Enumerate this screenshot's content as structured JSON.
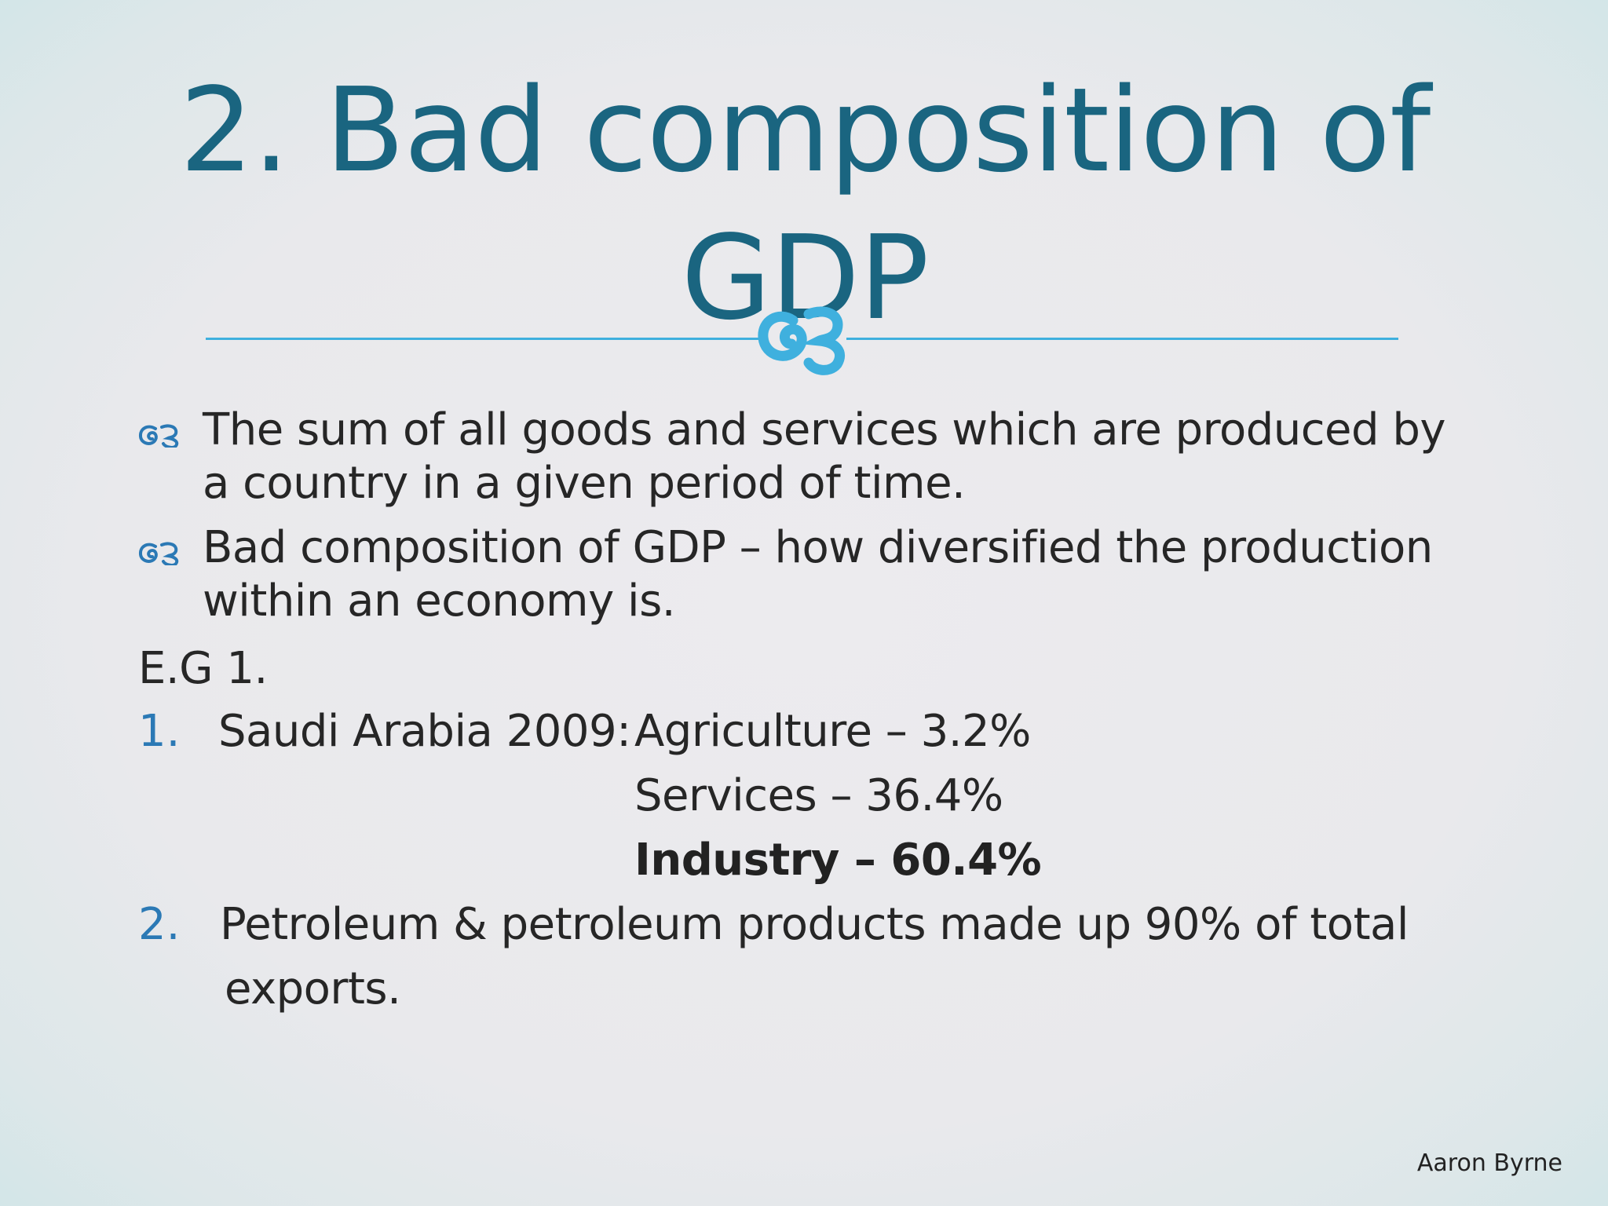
{
  "slide": {
    "title_line1": "2. Bad composition of",
    "title_line2": "GDP",
    "bullets": [
      {
        "line1": "The sum of all goods and services which are produced by",
        "line2": "a country in a given period of time."
      },
      {
        "line1": "Bad composition of GDP – how diversified the production",
        "line2": "within an economy is."
      }
    ],
    "example_label": "E.G 1.",
    "list": [
      {
        "number": "1.",
        "lead": "Saudi Arabia 2009:",
        "items": [
          "Agriculture – 3.2%",
          "Services – 36.4%",
          "Industry – 60.4%"
        ]
      },
      {
        "number": "2.",
        "line1": "Petroleum & petroleum products made up 90% of total",
        "line2": "exports."
      }
    ],
    "author": "Aaron Byrne"
  },
  "colors": {
    "title": "#1a6580",
    "accent": "#3fb0de",
    "numbering": "#2b79b5"
  },
  "icons": {
    "bullet": "swirl-bullet-icon",
    "divider_ornament": "swirl-ornament-icon"
  }
}
